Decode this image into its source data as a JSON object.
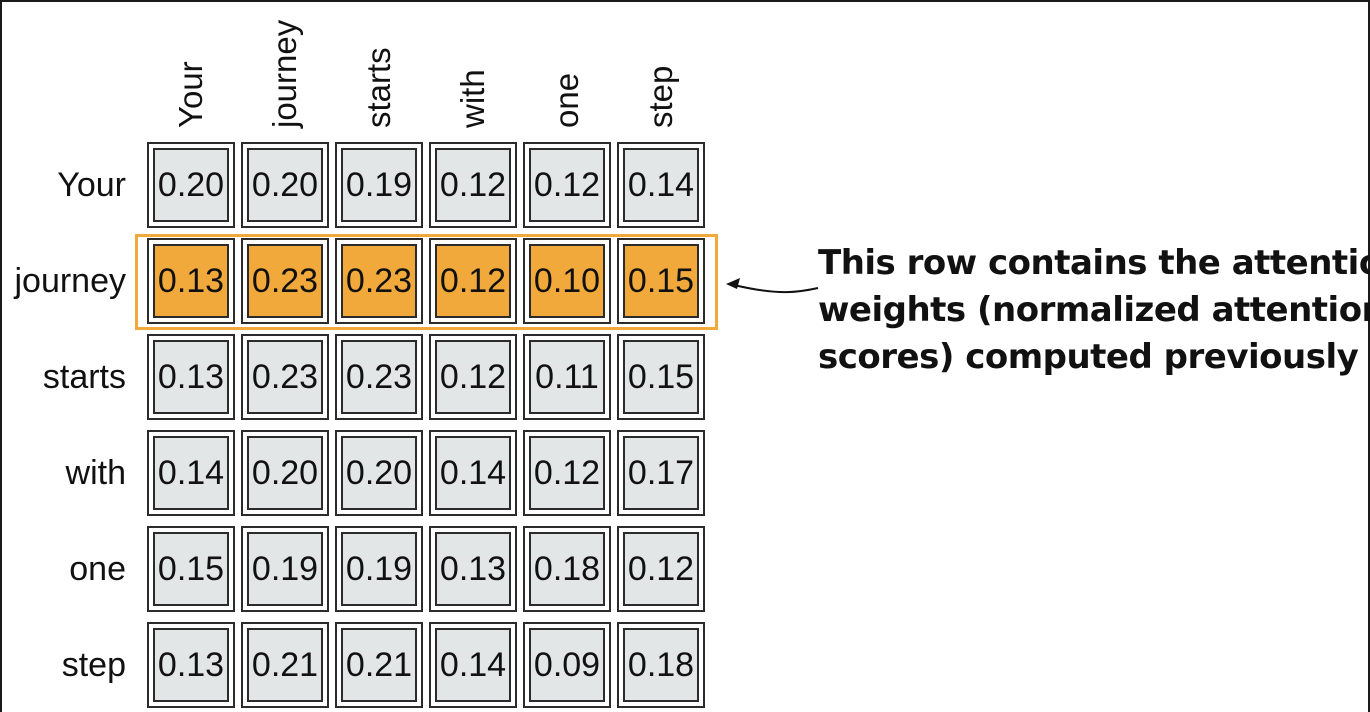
{
  "columns": [
    "Your",
    "journey",
    "starts",
    "with",
    "one",
    "step"
  ],
  "rows": [
    {
      "label": "Your",
      "values": [
        "0.20",
        "0.20",
        "0.19",
        "0.12",
        "0.12",
        "0.14"
      ]
    },
    {
      "label": "journey",
      "values": [
        "0.13",
        "0.23",
        "0.23",
        "0.12",
        "0.10",
        "0.15"
      ]
    },
    {
      "label": "starts",
      "values": [
        "0.13",
        "0.23",
        "0.23",
        "0.12",
        "0.11",
        "0.15"
      ]
    },
    {
      "label": "with",
      "values": [
        "0.14",
        "0.20",
        "0.20",
        "0.14",
        "0.12",
        "0.17"
      ]
    },
    {
      "label": "one",
      "values": [
        "0.15",
        "0.19",
        "0.19",
        "0.13",
        "0.18",
        "0.12"
      ]
    },
    {
      "label": "step",
      "values": [
        "0.13",
        "0.21",
        "0.21",
        "0.14",
        "0.09",
        "0.18"
      ]
    }
  ],
  "highlighted_row": "journey",
  "annotation": {
    "lines": [
      "This row contains the attention",
      "weights (normalized attention",
      "scores) computed previously"
    ]
  },
  "colors": {
    "cell_fill": "#e2e6e6",
    "highlight_fill": "#f2a93b",
    "border": "#2b2b2b"
  }
}
